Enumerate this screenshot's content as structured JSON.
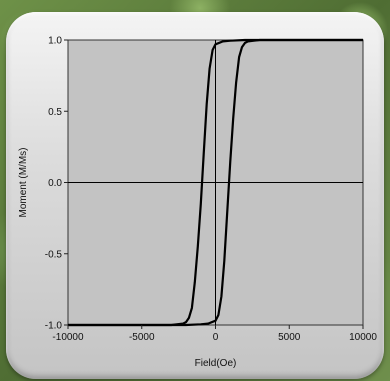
{
  "chart_data": {
    "type": "line",
    "title": "",
    "xlabel": "Field(Oe)",
    "ylabel": "Moment (M/Ms)",
    "xlim": [
      -10000,
      10000
    ],
    "ylim": [
      -1.0,
      1.0
    ],
    "x_ticks": [
      -10000,
      -5000,
      0,
      5000,
      10000
    ],
    "x_tick_labels": [
      "-10000",
      "-5000",
      "0",
      "5000",
      "10000"
    ],
    "y_ticks": [
      1.0,
      0.5,
      0.0,
      -0.5,
      -1.0
    ],
    "y_tick_labels": [
      "1.0",
      "0.5",
      "0.0",
      "-0.5",
      "-1.0"
    ],
    "grid": false,
    "zero_lines": true,
    "series": [
      {
        "points": [
          [
            -10000,
            -1.0
          ],
          [
            -6000,
            -1.0
          ],
          [
            -3000,
            -1.0
          ],
          [
            -2200,
            -0.99
          ],
          [
            -2000,
            -0.98
          ],
          [
            -1800,
            -0.95
          ],
          [
            -1600,
            -0.88
          ],
          [
            -1400,
            -0.7
          ],
          [
            -1200,
            -0.45
          ],
          [
            -1000,
            -0.15
          ],
          [
            -800,
            0.2
          ],
          [
            -600,
            0.55
          ],
          [
            -400,
            0.8
          ],
          [
            -200,
            0.93
          ],
          [
            0,
            0.97
          ],
          [
            500,
            0.99
          ],
          [
            1000,
            0.995
          ],
          [
            2000,
            1.0
          ],
          [
            10000,
            1.0
          ]
        ]
      },
      {
        "points": [
          [
            10000,
            1.0
          ],
          [
            6000,
            1.0
          ],
          [
            3000,
            1.0
          ],
          [
            2200,
            0.99
          ],
          [
            2000,
            0.98
          ],
          [
            1800,
            0.95
          ],
          [
            1600,
            0.88
          ],
          [
            1400,
            0.7
          ],
          [
            1200,
            0.45
          ],
          [
            1000,
            0.15
          ],
          [
            800,
            -0.2
          ],
          [
            600,
            -0.55
          ],
          [
            400,
            -0.8
          ],
          [
            200,
            -0.93
          ],
          [
            0,
            -0.97
          ],
          [
            -500,
            -0.99
          ],
          [
            -1000,
            -0.995
          ],
          [
            -2000,
            -1.0
          ],
          [
            -10000,
            -1.0
          ]
        ]
      }
    ],
    "colors": {
      "plot_bg": "#c3c3c3",
      "line": "#000000",
      "zero_line": "#000000"
    }
  }
}
